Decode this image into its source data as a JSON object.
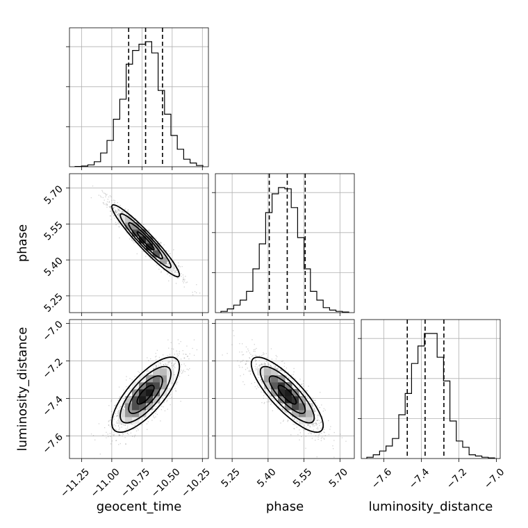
{
  "chart_data": {
    "type": "corner",
    "parameters": [
      {
        "name": "geocent_time",
        "label": "geocent_time",
        "range": [
          -11.35,
          -10.2
        ],
        "ticks": [
          -11.25,
          -11.0,
          -10.75,
          -10.5,
          -10.25
        ],
        "tick_labels": [
          "−11.25",
          "−11.00",
          "−10.75",
          "−10.50",
          "−10.25"
        ],
        "median": -10.72,
        "quantiles": [
          -10.86,
          -10.72,
          -10.58
        ],
        "histogram": [
          0.002,
          0.006,
          0.015,
          0.04,
          0.11,
          0.21,
          0.38,
          0.54,
          0.82,
          0.93,
          0.98,
          1.0,
          0.91,
          0.61,
          0.42,
          0.25,
          0.14,
          0.06,
          0.03,
          0.01
        ]
      },
      {
        "name": "phase",
        "label": "phase",
        "range": [
          5.18,
          5.76
        ],
        "ticks": [
          5.25,
          5.4,
          5.55,
          5.7
        ],
        "tick_labels": [
          "5.25",
          "5.40",
          "5.55",
          "5.70"
        ],
        "median": 5.48,
        "quantiles": [
          5.405,
          5.48,
          5.555
        ],
        "histogram": [
          0.01,
          0.03,
          0.06,
          0.1,
          0.17,
          0.35,
          0.55,
          0.8,
          0.95,
          1.0,
          0.99,
          0.84,
          0.6,
          0.35,
          0.17,
          0.1,
          0.04,
          0.02,
          0.01,
          0.005
        ]
      },
      {
        "name": "luminosity_distance",
        "label": "luminosity_distance",
        "range": [
          -7.72,
          -6.98
        ],
        "ticks": [
          -7.6,
          -7.4,
          -7.2,
          -7.0
        ],
        "tick_labels": [
          "−7.6",
          "−7.4",
          "−7.2",
          "−7.0"
        ],
        "median": -7.38,
        "quantiles": [
          -7.475,
          -7.38,
          -7.28
        ],
        "histogram": [
          0.01,
          0.03,
          0.06,
          0.1,
          0.16,
          0.35,
          0.52,
          0.76,
          0.9,
          1.0,
          1.0,
          0.81,
          0.62,
          0.3,
          0.14,
          0.09,
          0.03,
          0.02,
          0.01,
          0.005
        ]
      }
    ],
    "correlations": {
      "phase|geocent_time": -0.95,
      "luminosity_distance|geocent_time": 0.75,
      "luminosity_distance|phase": -0.82
    },
    "std": {
      "geocent_time": 0.14,
      "phase": 0.075,
      "luminosity_distance": 0.1
    },
    "contour_levels_sigma": [
      0.5,
      1.0,
      1.5,
      2.0
    ],
    "grid": true
  }
}
